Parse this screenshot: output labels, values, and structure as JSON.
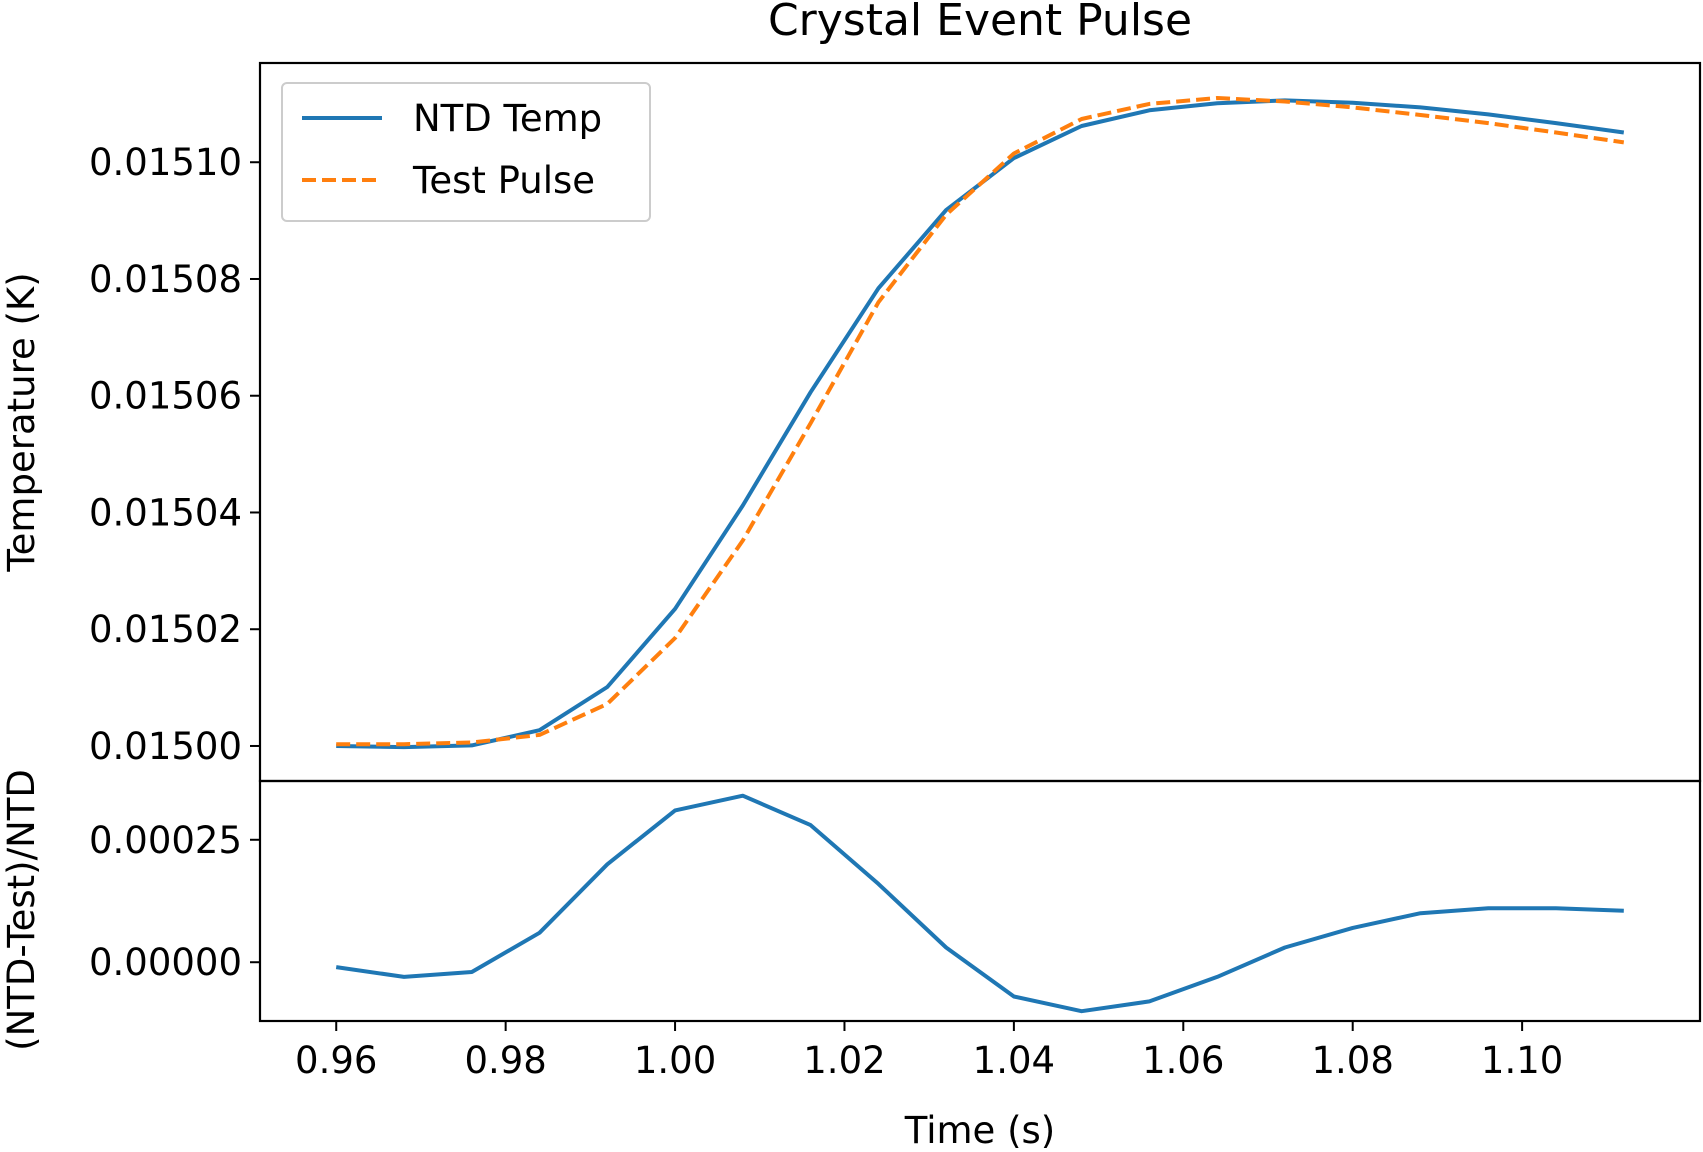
{
  "chart_data": {
    "type": "line",
    "title": "Crystal Event Pulse",
    "xlabel": "Time (s)",
    "xlim": [
      0.951,
      1.121
    ],
    "x_ticks": [
      "0.96",
      "0.98",
      "1.00",
      "1.02",
      "1.04",
      "1.06",
      "1.08",
      "1.10"
    ],
    "legend_position": "top-left",
    "x": [
      0.96,
      0.968,
      0.976,
      0.984,
      0.992,
      1.0,
      1.008,
      1.016,
      1.024,
      1.032,
      1.04,
      1.048,
      1.056,
      1.064,
      1.072,
      1.08,
      1.088,
      1.096,
      1.104,
      1.112
    ],
    "panels": [
      {
        "ylabel": "Temperature (K)",
        "ylim": [
          0.014994,
          0.015117
        ],
        "y_ticks": [
          "0.01500",
          "0.01502",
          "0.01504",
          "0.01506",
          "0.01508",
          "0.01510"
        ],
        "series": [
          {
            "name": "NTD Temp",
            "color": "#1f77b4",
            "dash": "solid",
            "values": [
              0.015,
              0.0149998,
              0.0150001,
              0.0150027,
              0.0150101,
              0.0150235,
              0.0150412,
              0.0150606,
              0.0150784,
              0.0150918,
              0.0151007,
              0.0151062,
              0.0151089,
              0.0151101,
              0.0151106,
              0.0151102,
              0.0151094,
              0.0151082,
              0.0151067,
              0.0151051
            ]
          },
          {
            "name": "Test Pulse",
            "color": "#ff7f0e",
            "dash": "dashed",
            "values": [
              0.0150003,
              0.0150003,
              0.0150006,
              0.0150019,
              0.0150072,
              0.0150185,
              0.0150352,
              0.0150553,
              0.015076,
              0.015091,
              0.0151015,
              0.0151074,
              0.01511,
              0.015111,
              0.0151104,
              0.0151094,
              0.0151081,
              0.0151067,
              0.0151051,
              0.0151034
            ]
          }
        ]
      },
      {
        "ylabel": "(NTD-Test)/NTD",
        "ylim": [
          -0.00012,
          0.00037
        ],
        "y_ticks": [
          "0.00000",
          "0.00025"
        ],
        "series": [
          {
            "color": "#1f77b4",
            "dash": "solid",
            "values": [
              -1e-05,
              -3e-05,
              -2e-05,
              6e-05,
              0.0002,
              0.00031,
              0.00034,
              0.00028,
              0.00016,
              3e-05,
              -7e-05,
              -0.0001,
              -8e-05,
              -3e-05,
              3e-05,
              7e-05,
              0.0001,
              0.00011,
              0.00011,
              0.000105
            ]
          }
        ]
      }
    ]
  }
}
